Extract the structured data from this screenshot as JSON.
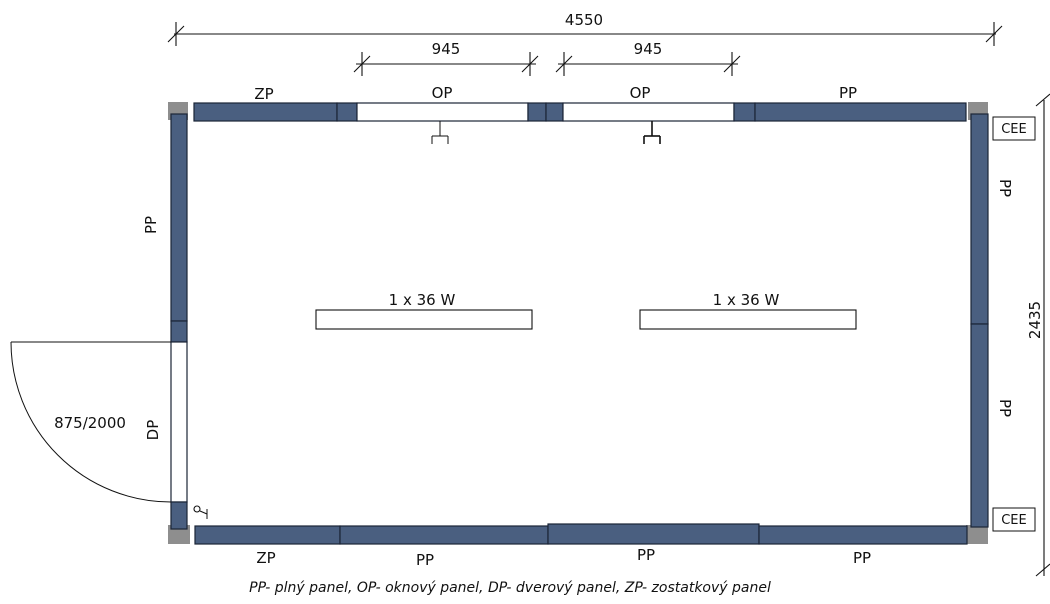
{
  "dimensions": {
    "total_width": "4550",
    "window_1": "945",
    "window_2": "945",
    "height": "2435"
  },
  "panels": {
    "top_left": "ZP",
    "top_window_1": "OP",
    "top_window_2": "OP",
    "top_right": "PP",
    "left_upper": "PP",
    "left_door": "DP",
    "right_upper": "PP",
    "right_lower": "PP",
    "bottom_1": "ZP",
    "bottom_2": "PP",
    "bottom_3": "PP",
    "bottom_4": "PP"
  },
  "door_size": "875/2000",
  "lights": [
    {
      "label": "1 x 36 W"
    },
    {
      "label": "1 x 36 W"
    }
  ],
  "sockets": [
    "CEE",
    "CEE"
  ],
  "legend": "PP- plný panel, OP- oknový panel, DP- dverový panel, ZP- zostatkový panel"
}
